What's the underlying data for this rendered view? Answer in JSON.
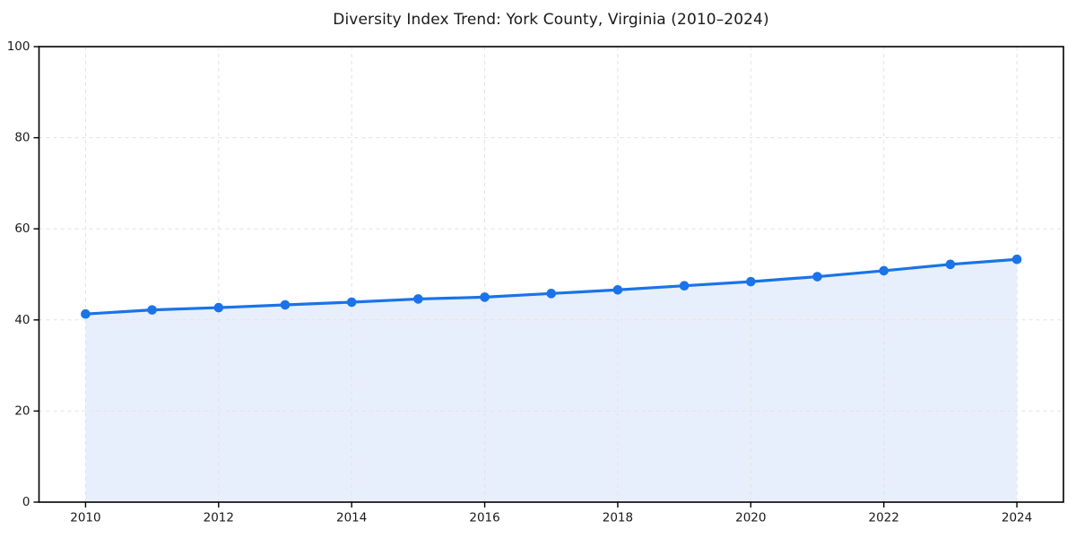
{
  "chart_data": {
    "type": "area",
    "title": "Diversity Index Trend: York County, Virginia (2010–2024)",
    "x": [
      2010,
      2011,
      2012,
      2013,
      2014,
      2015,
      2016,
      2017,
      2018,
      2019,
      2020,
      2021,
      2022,
      2023,
      2024
    ],
    "series": [
      {
        "name": "Diversity Index",
        "values": [
          41.3,
          42.2,
          42.7,
          43.3,
          43.9,
          44.6,
          45.0,
          45.8,
          46.6,
          47.5,
          48.4,
          49.5,
          50.8,
          52.2,
          53.3
        ]
      }
    ],
    "xlabel": "",
    "ylabel": "",
    "xticks": [
      2010,
      2012,
      2014,
      2016,
      2018,
      2020,
      2022,
      2024
    ],
    "yticks": [
      0,
      20,
      40,
      60,
      80,
      100
    ],
    "ylim": [
      0,
      100
    ],
    "grid": true,
    "legend_position": "none",
    "marker": "circle",
    "colors": {
      "line": "#1a73e8",
      "marker": "#1a73e8",
      "fill": "#e8effc",
      "grid": "#e2e2e2",
      "axis": "#000000",
      "text": "#1a1a1a"
    }
  }
}
